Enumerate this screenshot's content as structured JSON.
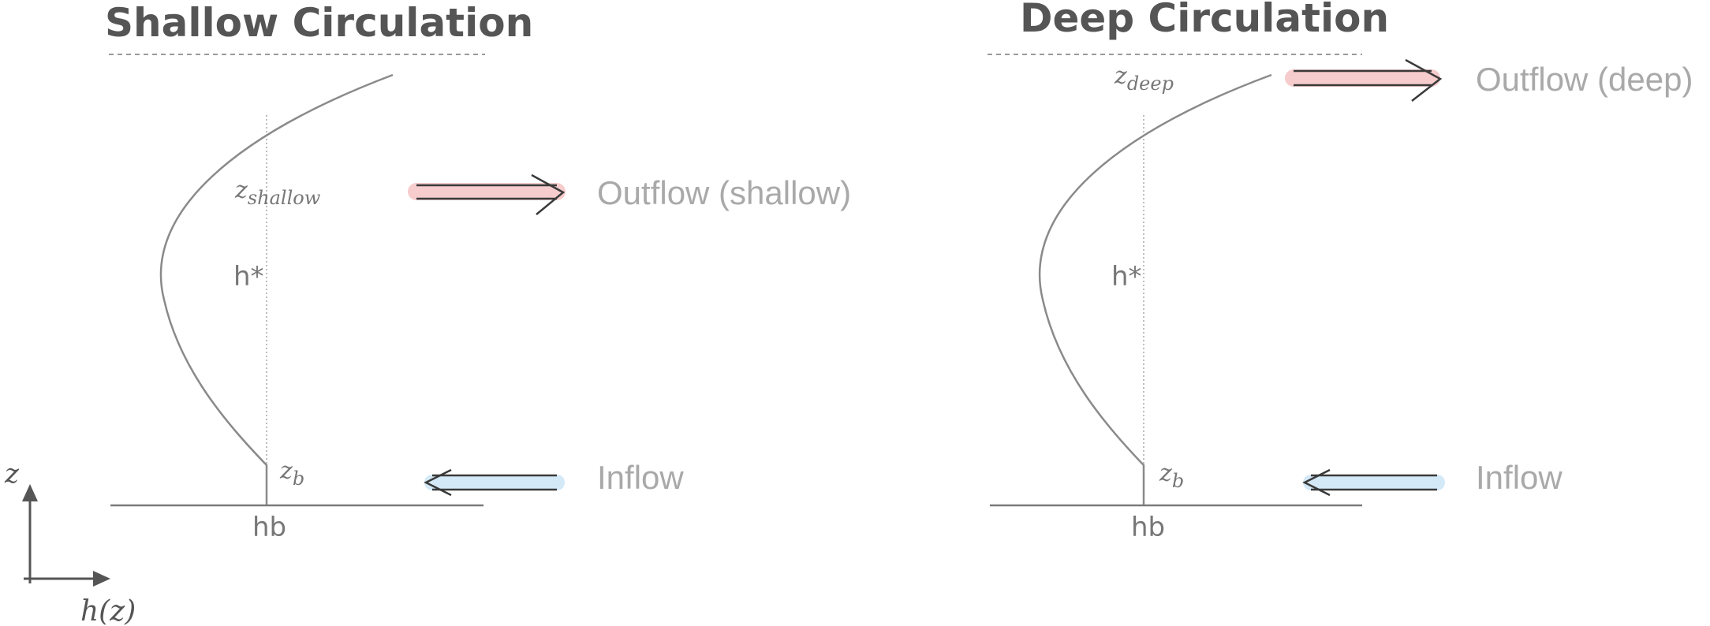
{
  "colors": {
    "title": "#555555",
    "curve": "#8a8a8a",
    "axis": "#7a7a7a",
    "dotted": "#b9b9b9",
    "label": "#a9a9a9",
    "math": "#777777",
    "outflow_highlight": "#f6cccc",
    "inflow_highlight": "#d3e9f8",
    "arrow": "#3a3a3a"
  },
  "axes": {
    "z_label": "z",
    "x_label": "h(z)"
  },
  "panels": [
    {
      "id": "shallow",
      "title": "Shallow Circulation",
      "z_outflow_base": "z",
      "z_outflow_sub": "shallow",
      "h_star": "h*",
      "z_b_base": "z",
      "z_b_sub": "b",
      "h_b": "hb",
      "outflow_label": "Outflow (shallow)",
      "inflow_label": "Inflow"
    },
    {
      "id": "deep",
      "title": "Deep Circulation",
      "z_outflow_base": "z",
      "z_outflow_sub": "deep",
      "h_star": "h*",
      "z_b_base": "z",
      "z_b_sub": "b",
      "h_b": "hb",
      "outflow_label": "Outflow (deep)",
      "inflow_label": "Inflow"
    }
  ]
}
